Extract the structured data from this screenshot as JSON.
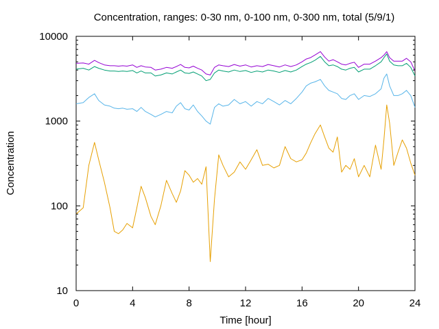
{
  "chart_data": {
    "type": "line",
    "title": "Concentration, ranges: 0-30 nm, 0-100 nm, 0-300 nm, total (5/9/1)",
    "xlabel": "Time [hour]",
    "ylabel": "Concentration",
    "xlim": [
      0,
      24
    ],
    "ylim": [
      10,
      10000
    ],
    "yscale": "log",
    "grid": false,
    "xticks": [
      "0",
      "4",
      "8",
      "12",
      "16",
      "20",
      "24"
    ],
    "yticks": [
      "10",
      "100",
      "1000",
      "10000"
    ],
    "series": [
      {
        "color": "#e69f00",
        "x": [
          0,
          0.5,
          0.9,
          1.3,
          1.6,
          2.0,
          2.4,
          2.7,
          3.0,
          3.3,
          3.6,
          4.0,
          4.3,
          4.6,
          4.9,
          5.3,
          5.6,
          6.0,
          6.4,
          6.8,
          7.1,
          7.4,
          7.7,
          8.0,
          8.3,
          8.6,
          8.9,
          9.2,
          9.5,
          9.8,
          10.1,
          10.4,
          10.8,
          11.2,
          11.6,
          12.0,
          12.4,
          12.8,
          13.2,
          13.6,
          14.0,
          14.4,
          14.8,
          15.2,
          15.6,
          16.0,
          16.3,
          16.6,
          16.9,
          17.3,
          17.6,
          17.9,
          18.2,
          18.5,
          18.8,
          19.1,
          19.4,
          19.7,
          20.0,
          20.4,
          20.8,
          21.2,
          21.6,
          21.8,
          22.0,
          22.2,
          22.5,
          22.8,
          23.1,
          23.4,
          23.7,
          24.0
        ],
        "y": [
          80,
          95,
          300,
          560,
          350,
          190,
          95,
          50,
          47,
          52,
          62,
          55,
          95,
          170,
          125,
          75,
          60,
          100,
          200,
          140,
          110,
          150,
          260,
          230,
          190,
          210,
          180,
          290,
          22,
          120,
          400,
          300,
          220,
          250,
          330,
          270,
          350,
          460,
          300,
          310,
          280,
          300,
          500,
          360,
          330,
          350,
          420,
          550,
          700,
          900,
          650,
          480,
          430,
          650,
          250,
          300,
          270,
          360,
          220,
          300,
          220,
          520,
          270,
          600,
          1550,
          950,
          300,
          430,
          600,
          480,
          320,
          230
        ]
      },
      {
        "color": "#56b4e9",
        "x": [
          0,
          0.5,
          0.9,
          1.3,
          1.6,
          2.0,
          2.4,
          2.7,
          3.0,
          3.3,
          3.6,
          4.0,
          4.3,
          4.6,
          4.9,
          5.3,
          5.6,
          6.0,
          6.4,
          6.8,
          7.1,
          7.4,
          7.7,
          8.0,
          8.3,
          8.6,
          8.9,
          9.2,
          9.5,
          9.8,
          10.1,
          10.4,
          10.8,
          11.2,
          11.6,
          12.0,
          12.4,
          12.8,
          13.2,
          13.6,
          14.0,
          14.4,
          14.8,
          15.2,
          15.6,
          16.0,
          16.3,
          16.6,
          16.9,
          17.3,
          17.6,
          17.9,
          18.2,
          18.5,
          18.8,
          19.1,
          19.4,
          19.7,
          20.0,
          20.4,
          20.8,
          21.2,
          21.6,
          21.8,
          22.0,
          22.2,
          22.5,
          22.8,
          23.1,
          23.4,
          23.7,
          24.0
        ],
        "y": [
          1600,
          1650,
          1900,
          2100,
          1750,
          1550,
          1500,
          1420,
          1400,
          1420,
          1380,
          1400,
          1300,
          1450,
          1300,
          1200,
          1120,
          1200,
          1300,
          1250,
          1500,
          1650,
          1400,
          1350,
          1550,
          1300,
          1150,
          1000,
          920,
          1450,
          1600,
          1500,
          1550,
          1800,
          1600,
          1700,
          1500,
          1700,
          1600,
          1850,
          1700,
          1550,
          1750,
          1600,
          1850,
          2200,
          2600,
          2800,
          2900,
          3100,
          2600,
          2300,
          2200,
          2100,
          1850,
          1800,
          2000,
          2100,
          1800,
          2000,
          1950,
          2100,
          2400,
          3200,
          3600,
          2600,
          2000,
          2000,
          2100,
          2300,
          2000,
          1450
        ]
      },
      {
        "color": "#009e73",
        "x": [
          0,
          0.5,
          0.9,
          1.3,
          1.6,
          2.0,
          2.4,
          2.7,
          3.0,
          3.3,
          3.6,
          4.0,
          4.3,
          4.6,
          4.9,
          5.3,
          5.6,
          6.0,
          6.4,
          6.8,
          7.1,
          7.4,
          7.7,
          8.0,
          8.3,
          8.6,
          8.9,
          9.2,
          9.5,
          9.8,
          10.1,
          10.4,
          10.8,
          11.2,
          11.6,
          12.0,
          12.4,
          12.8,
          13.2,
          13.6,
          14.0,
          14.4,
          14.8,
          15.2,
          15.6,
          16.0,
          16.3,
          16.6,
          16.9,
          17.3,
          17.6,
          17.9,
          18.2,
          18.5,
          18.8,
          19.1,
          19.4,
          19.7,
          20.0,
          20.4,
          20.8,
          21.2,
          21.6,
          21.8,
          22.0,
          22.2,
          22.5,
          22.8,
          23.1,
          23.4,
          23.7,
          24.0
        ],
        "y": [
          4100,
          4200,
          4000,
          4400,
          4200,
          4000,
          3900,
          3900,
          3850,
          3900,
          3850,
          3950,
          3700,
          3900,
          3700,
          3700,
          3400,
          3500,
          3700,
          3600,
          3800,
          4000,
          3700,
          3650,
          3800,
          3600,
          3400,
          3000,
          3100,
          3700,
          4000,
          3900,
          3800,
          4000,
          3850,
          3950,
          3750,
          3900,
          3800,
          4000,
          3900,
          3750,
          3950,
          3800,
          4000,
          4400,
          4700,
          4900,
          5200,
          5800,
          5000,
          4500,
          4600,
          4400,
          4100,
          4000,
          4200,
          4300,
          3800,
          4100,
          4100,
          4500,
          5000,
          5600,
          6200,
          5100,
          4600,
          4500,
          4500,
          4800,
          4300,
          3400
        ]
      },
      {
        "color": "#9400d3",
        "x": [
          0,
          0.5,
          0.9,
          1.3,
          1.6,
          2.0,
          2.4,
          2.7,
          3.0,
          3.3,
          3.6,
          4.0,
          4.3,
          4.6,
          4.9,
          5.3,
          5.6,
          6.0,
          6.4,
          6.8,
          7.1,
          7.4,
          7.7,
          8.0,
          8.3,
          8.6,
          8.9,
          9.2,
          9.5,
          9.8,
          10.1,
          10.4,
          10.8,
          11.2,
          11.6,
          12.0,
          12.4,
          12.8,
          13.2,
          13.6,
          14.0,
          14.4,
          14.8,
          15.2,
          15.6,
          16.0,
          16.3,
          16.6,
          16.9,
          17.3,
          17.6,
          17.9,
          18.2,
          18.5,
          18.8,
          19.1,
          19.4,
          19.7,
          20.0,
          20.4,
          20.8,
          21.2,
          21.6,
          21.8,
          22.0,
          22.2,
          22.5,
          22.8,
          23.1,
          23.4,
          23.7,
          24.0
        ],
        "y": [
          4800,
          4850,
          4700,
          5200,
          4900,
          4600,
          4500,
          4500,
          4450,
          4500,
          4450,
          4600,
          4300,
          4500,
          4350,
          4300,
          4000,
          4100,
          4300,
          4200,
          4400,
          4650,
          4300,
          4250,
          4450,
          4200,
          4000,
          3600,
          3500,
          4300,
          4600,
          4500,
          4400,
          4650,
          4450,
          4600,
          4350,
          4500,
          4400,
          4650,
          4500,
          4350,
          4600,
          4400,
          4600,
          5000,
          5400,
          5600,
          6000,
          6600,
          5700,
          5100,
          5300,
          5000,
          4700,
          4600,
          4800,
          4950,
          4300,
          4700,
          4700,
          5100,
          5600,
          6000,
          6600,
          5600,
          5100,
          5100,
          5100,
          5500,
          5000,
          3900
        ]
      }
    ]
  }
}
